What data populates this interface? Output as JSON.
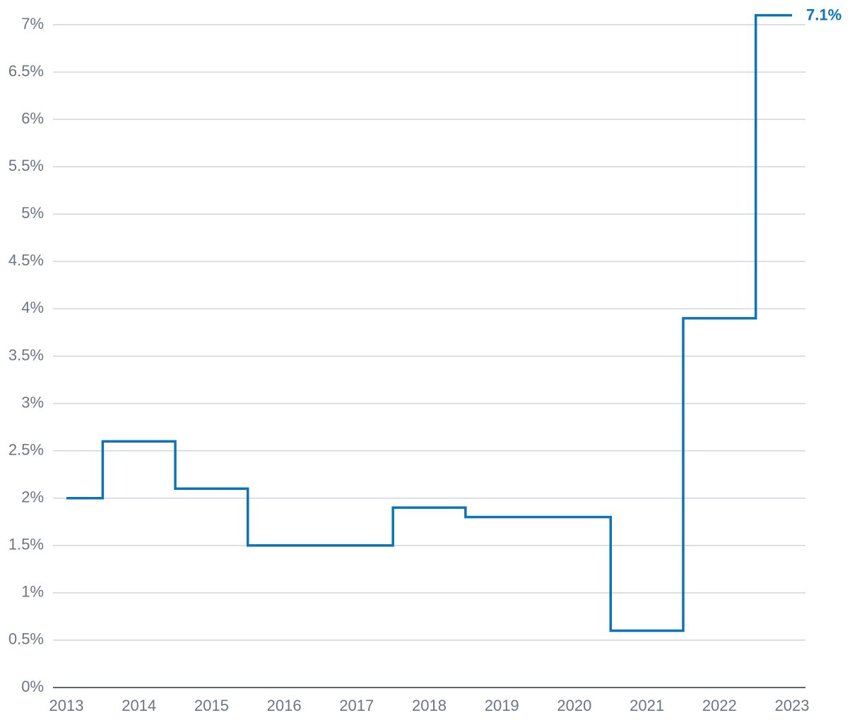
{
  "chart_data": {
    "type": "line",
    "step": "mid",
    "x": [
      2013,
      2014,
      2015,
      2016,
      2017,
      2018,
      2019,
      2020,
      2021,
      2022,
      2023
    ],
    "x_tick_labels": [
      "2013",
      "2014",
      "2015",
      "2016",
      "2017",
      "2018",
      "2019",
      "2020",
      "2021",
      "2022",
      "2023"
    ],
    "series": [
      {
        "values": [
          2.0,
          2.6,
          2.1,
          1.5,
          1.5,
          1.9,
          1.8,
          1.8,
          0.6,
          3.9,
          7.1
        ],
        "color": "#0a74ba",
        "end_label": "7.1%"
      }
    ],
    "ylim": [
      0,
      7
    ],
    "y_ticks": [
      0,
      0.5,
      1,
      1.5,
      2,
      2.5,
      3,
      3.5,
      4,
      4.5,
      5,
      5.5,
      6,
      6.5,
      7
    ],
    "y_tick_labels": [
      "0%",
      "0.5%",
      "1%",
      "1.5%",
      "2%",
      "2.5%",
      "3%",
      "3.5%",
      "4%",
      "4.5%",
      "5%",
      "5.5%",
      "6%",
      "6.5%",
      "7%"
    ],
    "grid": "horizontal",
    "title": "",
    "xlabel": "",
    "ylabel": ""
  }
}
